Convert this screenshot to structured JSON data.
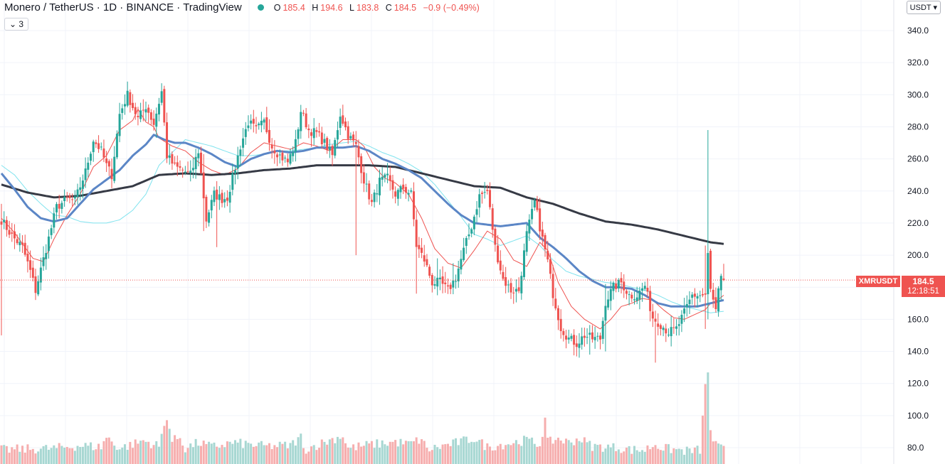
{
  "header": {
    "title": "Monero / TetherUS · 1D · BINANCE · TradingView",
    "open_label": "O",
    "open": "185.4",
    "high_label": "H",
    "high": "194.6",
    "low_label": "L",
    "low": "183.8",
    "close_label": "C",
    "close": "184.5",
    "change": "−0.9 (−0.49%)"
  },
  "collapse_button": "⌄ 3",
  "currency_button": "USDT ▾",
  "symbol_tag": "XMRUSDT",
  "last_price": "184.5",
  "countdown": "12:18:51",
  "colors": {
    "up": "#26a69a",
    "down": "#ef5350",
    "volume_up": "#a7d7d2",
    "volume_down": "#f6aeae",
    "ma_short": "#ef5350",
    "ma_mid": "#5b86c6",
    "ma_cyan": "#7fe3ee",
    "ma_long": "#363a45"
  },
  "chart_data": {
    "type": "candlestick",
    "ylim": [
      75,
      345
    ],
    "y_ticks": [
      "340.0",
      "320.0",
      "300.0",
      "280.0",
      "260.0",
      "240.0",
      "220.0",
      "200.0",
      "180.0",
      "160.0",
      "140.0",
      "120.0",
      "100.0",
      "80.0"
    ],
    "last_price": 184.5,
    "keyframes": {
      "close": [
        [
          0,
          222
        ],
        [
          4,
          212
        ],
        [
          8,
          205
        ],
        [
          11,
          190
        ],
        [
          13,
          178
        ],
        [
          17,
          204
        ],
        [
          21,
          230
        ],
        [
          25,
          235
        ],
        [
          28,
          234
        ],
        [
          32,
          252
        ],
        [
          35,
          272
        ],
        [
          38,
          265
        ],
        [
          40,
          256
        ],
        [
          42,
          250
        ],
        [
          45,
          288
        ],
        [
          48,
          300
        ],
        [
          52,
          285
        ],
        [
          55,
          293
        ],
        [
          58,
          282
        ],
        [
          61,
          302
        ],
        [
          63,
          262
        ],
        [
          66,
          255
        ],
        [
          69,
          253
        ],
        [
          72,
          250
        ],
        [
          75,
          265
        ],
        [
          78,
          222
        ],
        [
          81,
          238
        ],
        [
          84,
          235
        ],
        [
          86,
          236
        ],
        [
          88,
          248
        ],
        [
          91,
          268
        ],
        [
          94,
          283
        ],
        [
          97,
          278
        ],
        [
          100,
          283
        ],
        [
          103,
          268
        ],
        [
          106,
          262
        ],
        [
          109,
          258
        ],
        [
          112,
          270
        ],
        [
          114,
          290
        ],
        [
          117,
          278
        ],
        [
          120,
          276
        ],
        [
          123,
          270
        ],
        [
          126,
          262
        ],
        [
          129,
          288
        ],
        [
          132,
          275
        ],
        [
          135,
          268
        ],
        [
          138,
          247
        ],
        [
          141,
          232
        ],
        [
          144,
          246
        ],
        [
          147,
          248
        ],
        [
          150,
          238
        ],
        [
          153,
          242
        ],
        [
          156,
          238
        ],
        [
          158,
          206
        ],
        [
          161,
          197
        ],
        [
          164,
          183
        ],
        [
          167,
          183
        ],
        [
          170,
          178
        ],
        [
          173,
          186
        ],
        [
          176,
          203
        ],
        [
          179,
          218
        ],
        [
          182,
          237
        ],
        [
          185,
          240
        ],
        [
          188,
          205
        ],
        [
          191,
          185
        ],
        [
          194,
          178
        ],
        [
          197,
          178
        ],
        [
          200,
          213
        ],
        [
          203,
          233
        ],
        [
          206,
          210
        ],
        [
          208,
          196
        ],
        [
          210,
          176
        ],
        [
          213,
          155
        ],
        [
          216,
          148
        ],
        [
          219,
          145
        ],
        [
          222,
          150
        ],
        [
          225,
          148
        ],
        [
          228,
          148
        ],
        [
          230,
          171
        ],
        [
          233,
          180
        ],
        [
          236,
          183
        ],
        [
          239,
          175
        ],
        [
          242,
          175
        ],
        [
          245,
          181
        ],
        [
          248,
          161
        ],
        [
          251,
          157
        ],
        [
          254,
          152
        ],
        [
          257,
          154
        ],
        [
          260,
          164
        ],
        [
          263,
          175
        ],
        [
          266,
          175
        ],
        [
          268,
          175
        ],
        [
          269,
          200
        ],
        [
          270,
          178
        ],
        [
          272,
          165
        ],
        [
          273,
          177
        ],
        [
          274,
          185
        ],
        [
          275,
          184.5
        ]
      ],
      "ma_short": [
        [
          0,
          223
        ],
        [
          5,
          214
        ],
        [
          12,
          198
        ],
        [
          16,
          196
        ],
        [
          20,
          210
        ],
        [
          25,
          225
        ],
        [
          30,
          238
        ],
        [
          35,
          255
        ],
        [
          40,
          262
        ],
        [
          45,
          278
        ],
        [
          50,
          284
        ],
        [
          52,
          291
        ],
        [
          55,
          283
        ],
        [
          58,
          280
        ],
        [
          60,
          273
        ],
        [
          65,
          268
        ],
        [
          70,
          265
        ],
        [
          75,
          258
        ],
        [
          80,
          253
        ],
        [
          85,
          250
        ],
        [
          90,
          254
        ],
        [
          95,
          264
        ],
        [
          100,
          270
        ],
        [
          105,
          268
        ],
        [
          110,
          266
        ],
        [
          115,
          270
        ],
        [
          120,
          268
        ],
        [
          125,
          265
        ],
        [
          130,
          272
        ],
        [
          135,
          272
        ],
        [
          138,
          268
        ],
        [
          142,
          255
        ],
        [
          146,
          248
        ],
        [
          150,
          245
        ],
        [
          155,
          238
        ],
        [
          160,
          223
        ],
        [
          165,
          204
        ],
        [
          170,
          195
        ],
        [
          175,
          192
        ],
        [
          180,
          203
        ],
        [
          185,
          215
        ],
        [
          190,
          210
        ],
        [
          195,
          197
        ],
        [
          200,
          193
        ],
        [
          205,
          208
        ],
        [
          208,
          203
        ],
        [
          212,
          183
        ],
        [
          217,
          168
        ],
        [
          222,
          160
        ],
        [
          228,
          154
        ],
        [
          232,
          160
        ],
        [
          236,
          168
        ],
        [
          240,
          170
        ],
        [
          244,
          173
        ],
        [
          248,
          172
        ],
        [
          252,
          166
        ],
        [
          256,
          161
        ],
        [
          260,
          160
        ],
        [
          264,
          163
        ],
        [
          268,
          166
        ],
        [
          270,
          170
        ],
        [
          272,
          171
        ],
        [
          275,
          175
        ]
      ],
      "ma_mid": [
        [
          0,
          251
        ],
        [
          5,
          241
        ],
        [
          10,
          230
        ],
        [
          15,
          223
        ],
        [
          20,
          221
        ],
        [
          25,
          223
        ],
        [
          30,
          232
        ],
        [
          35,
          241
        ],
        [
          40,
          247
        ],
        [
          45,
          253
        ],
        [
          50,
          262
        ],
        [
          55,
          269
        ],
        [
          58,
          275
        ],
        [
          62,
          272
        ],
        [
          66,
          270
        ],
        [
          70,
          270
        ],
        [
          75,
          267
        ],
        [
          80,
          263
        ],
        [
          85,
          258
        ],
        [
          90,
          255
        ],
        [
          95,
          260
        ],
        [
          100,
          263
        ],
        [
          105,
          265
        ],
        [
          110,
          264
        ],
        [
          115,
          265
        ],
        [
          120,
          267
        ],
        [
          125,
          267
        ],
        [
          130,
          267
        ],
        [
          135,
          268
        ],
        [
          140,
          265
        ],
        [
          145,
          260
        ],
        [
          150,
          257
        ],
        [
          155,
          253
        ],
        [
          160,
          248
        ],
        [
          165,
          240
        ],
        [
          170,
          232
        ],
        [
          175,
          225
        ],
        [
          180,
          220
        ],
        [
          185,
          219
        ],
        [
          190,
          218
        ],
        [
          195,
          219
        ],
        [
          200,
          220
        ],
        [
          205,
          211
        ],
        [
          210,
          205
        ],
        [
          215,
          198
        ],
        [
          220,
          190
        ],
        [
          225,
          184
        ],
        [
          230,
          180
        ],
        [
          235,
          180
        ],
        [
          240,
          179
        ],
        [
          245,
          175
        ],
        [
          250,
          170
        ],
        [
          255,
          168
        ],
        [
          260,
          168
        ],
        [
          265,
          168
        ],
        [
          270,
          170
        ],
        [
          275,
          172
        ]
      ],
      "ma_cyan": [
        [
          0,
          256
        ],
        [
          5,
          250
        ],
        [
          10,
          240
        ],
        [
          15,
          232
        ],
        [
          20,
          225
        ],
        [
          25,
          224
        ],
        [
          30,
          221
        ],
        [
          35,
          220
        ],
        [
          40,
          220
        ],
        [
          45,
          222
        ],
        [
          50,
          228
        ],
        [
          55,
          238
        ],
        [
          60,
          256
        ],
        [
          65,
          264
        ],
        [
          70,
          272
        ],
        [
          75,
          270
        ],
        [
          80,
          268
        ],
        [
          85,
          265
        ],
        [
          90,
          262
        ],
        [
          95,
          262
        ],
        [
          100,
          263
        ],
        [
          105,
          265
        ],
        [
          110,
          265
        ],
        [
          115,
          266
        ],
        [
          120,
          267
        ],
        [
          125,
          269
        ],
        [
          130,
          270
        ],
        [
          135,
          271
        ],
        [
          140,
          268
        ],
        [
          145,
          264
        ],
        [
          150,
          261
        ],
        [
          155,
          257
        ],
        [
          160,
          252
        ],
        [
          165,
          244
        ],
        [
          170,
          234
        ],
        [
          175,
          224
        ],
        [
          180,
          213
        ],
        [
          185,
          210
        ],
        [
          190,
          206
        ],
        [
          195,
          209
        ],
        [
          200,
          212
        ],
        [
          205,
          206
        ],
        [
          210,
          197
        ],
        [
          215,
          190
        ],
        [
          220,
          187
        ],
        [
          225,
          185
        ],
        [
          230,
          183
        ],
        [
          235,
          182
        ],
        [
          240,
          180
        ],
        [
          245,
          178
        ],
        [
          250,
          175
        ],
        [
          255,
          171
        ],
        [
          260,
          168
        ],
        [
          265,
          166
        ],
        [
          270,
          164
        ],
        [
          275,
          165
        ]
      ],
      "ma_long": [
        [
          0,
          244
        ],
        [
          10,
          239
        ],
        [
          20,
          236
        ],
        [
          30,
          237
        ],
        [
          40,
          240
        ],
        [
          50,
          243
        ],
        [
          60,
          250
        ],
        [
          70,
          251
        ],
        [
          80,
          250
        ],
        [
          90,
          251
        ],
        [
          100,
          253
        ],
        [
          110,
          254
        ],
        [
          120,
          256
        ],
        [
          130,
          256
        ],
        [
          140,
          256
        ],
        [
          150,
          255
        ],
        [
          160,
          251
        ],
        [
          170,
          247
        ],
        [
          180,
          243
        ],
        [
          190,
          242
        ],
        [
          200,
          236
        ],
        [
          210,
          232
        ],
        [
          220,
          226
        ],
        [
          230,
          221
        ],
        [
          240,
          219
        ],
        [
          250,
          216
        ],
        [
          260,
          212
        ],
        [
          270,
          208
        ],
        [
          275,
          207
        ]
      ]
    },
    "spikes": [
      [
        0,
        232,
        150
      ],
      [
        13,
        189,
        175
      ],
      [
        77,
        263,
        215
      ],
      [
        82,
        233,
        205
      ],
      [
        135,
        268,
        200
      ],
      [
        158,
        225,
        176
      ],
      [
        166,
        198,
        175
      ],
      [
        172,
        195,
        177
      ],
      [
        224,
        156,
        138
      ],
      [
        230,
        182,
        140
      ],
      [
        249,
        165,
        133
      ],
      [
        269,
        278,
        160
      ],
      [
        268,
        206,
        154
      ]
    ],
    "volume_ylim": [
      0,
      160
    ],
    "volume_keyframes": [
      [
        0,
        20
      ],
      [
        20,
        22
      ],
      [
        30,
        26
      ],
      [
        38,
        24
      ],
      [
        40,
        38
      ],
      [
        45,
        22
      ],
      [
        52,
        30
      ],
      [
        54,
        33
      ],
      [
        60,
        25
      ],
      [
        63,
        68
      ],
      [
        65,
        32
      ],
      [
        68,
        38
      ],
      [
        70,
        22
      ],
      [
        75,
        30
      ],
      [
        80,
        24
      ],
      [
        88,
        30
      ],
      [
        100,
        25
      ],
      [
        110,
        26
      ],
      [
        114,
        38
      ],
      [
        115,
        20
      ],
      [
        130,
        40
      ],
      [
        132,
        22
      ],
      [
        140,
        27
      ],
      [
        150,
        31
      ],
      [
        155,
        28
      ],
      [
        160,
        35
      ],
      [
        162,
        20
      ],
      [
        180,
        36
      ],
      [
        185,
        24
      ],
      [
        195,
        30
      ],
      [
        200,
        34
      ],
      [
        205,
        27
      ],
      [
        207,
        62
      ],
      [
        208,
        30
      ],
      [
        212,
        36
      ],
      [
        216,
        30
      ],
      [
        220,
        36
      ],
      [
        225,
        25
      ],
      [
        235,
        23
      ],
      [
        240,
        20
      ],
      [
        245,
        20
      ],
      [
        249,
        28
      ],
      [
        252,
        22
      ],
      [
        262,
        18
      ],
      [
        266,
        20
      ],
      [
        267,
        65
      ],
      [
        268,
        108
      ],
      [
        269,
        130
      ],
      [
        270,
        50
      ],
      [
        271,
        28
      ],
      [
        275,
        20
      ]
    ]
  }
}
